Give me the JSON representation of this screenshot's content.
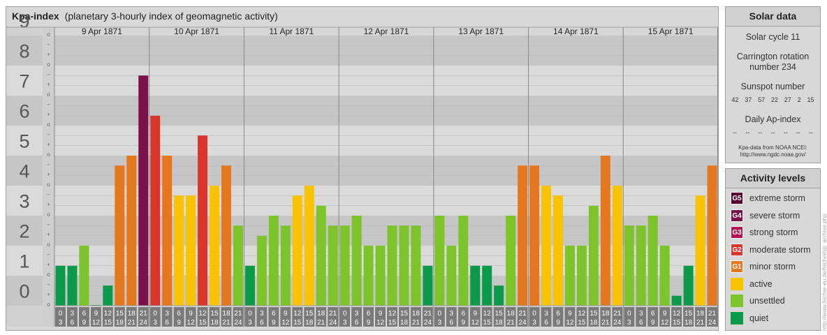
{
  "chart_title": {
    "bold": "Kpa-index",
    "normal": "(planetary 3-hourly index of geomagnetic activity)"
  },
  "chart_data": {
    "type": "bar",
    "title": "Kpa-index (planetary 3-hourly index of geomagnetic activity)",
    "days": [
      "9 Apr 1871",
      "10 Apr 1871",
      "11 Apr 1871",
      "12 Apr 1871",
      "13 Apr 1871",
      "14 Apr 1871",
      "15 Apr 1871"
    ],
    "intervals": [
      [
        "0",
        "3"
      ],
      [
        "3",
        "6"
      ],
      [
        "6",
        "9"
      ],
      [
        "9",
        "12"
      ],
      [
        "12",
        "15"
      ],
      [
        "15",
        "18"
      ],
      [
        "18",
        "21"
      ],
      [
        "21",
        "24"
      ]
    ],
    "y_ticks": [
      "0",
      "1",
      "2",
      "3",
      "4",
      "5",
      "6",
      "7",
      "8",
      "9"
    ],
    "minor_ticks": [
      "o",
      "+",
      "−"
    ],
    "ylim": [
      0,
      9
    ],
    "values": [
      1.33,
      1.33,
      2.0,
      0.0,
      0.67,
      4.67,
      5.0,
      7.67,
      6.33,
      5.0,
      3.67,
      3.67,
      5.67,
      4.0,
      4.67,
      2.67,
      1.33,
      2.33,
      3.0,
      2.67,
      3.67,
      4.0,
      3.33,
      2.67,
      2.67,
      3.0,
      2.0,
      2.0,
      2.67,
      2.67,
      2.67,
      1.33,
      3.0,
      2.0,
      3.0,
      1.33,
      1.33,
      0.67,
      3.0,
      4.67,
      4.67,
      4.0,
      3.67,
      2.0,
      2.0,
      3.33,
      5.0,
      4.0,
      2.67,
      2.67,
      3.0,
      2.0,
      0.33,
      1.33,
      3.67,
      4.67
    ],
    "grid": true
  },
  "colors": {
    "quiet": "#0a9a4a",
    "unsettled": "#7dc32a",
    "active": "#f9c300",
    "g1": "#e5781e",
    "g2": "#d9352a",
    "g3": "#b3134e",
    "g4": "#7a1148",
    "g5": "#5a0030",
    "band_dark": "#c6c6c6",
    "band_light": "#dadada",
    "axis_label_bg": "#7a7a7a"
  },
  "solar": {
    "title": "Solar data",
    "cycle": "Solar cycle 11",
    "carrington_1": "Carrington rotation",
    "carrington_2": "number 234",
    "sunspot_label": "Sunspot number",
    "sunspots": [
      "42",
      "37",
      "57",
      "22",
      "27",
      "2",
      "15"
    ],
    "ap_label": "Daily Ap-index",
    "ap_values": [
      "--",
      "--",
      "--",
      "--",
      "--",
      "--",
      "--"
    ],
    "note_1": "Kpa-data from NOAA NCEI:",
    "note_2": "http://www.ngdc.noaa.gov/"
  },
  "activity": {
    "title": "Activity levels",
    "items": [
      {
        "code": "G5",
        "label": "extreme storm",
        "color": "#5a0030"
      },
      {
        "code": "G4",
        "label": "severe storm",
        "color": "#7a1148"
      },
      {
        "code": "G3",
        "label": "strong storm",
        "color": "#b3134e"
      },
      {
        "code": "G2",
        "label": "moderate storm",
        "color": "#d9352a"
      },
      {
        "code": "G1",
        "label": "minor storm",
        "color": "#e5781e"
      },
      {
        "code": "",
        "label": "active",
        "color": "#f9c300"
      },
      {
        "code": "",
        "label": "unsettled",
        "color": "#7dc32a"
      },
      {
        "code": "",
        "label": "quiet",
        "color": "#0a9a4a"
      }
    ]
  },
  "credit": "http://www.fischer-eu.de/fischer/sp_archive.php"
}
